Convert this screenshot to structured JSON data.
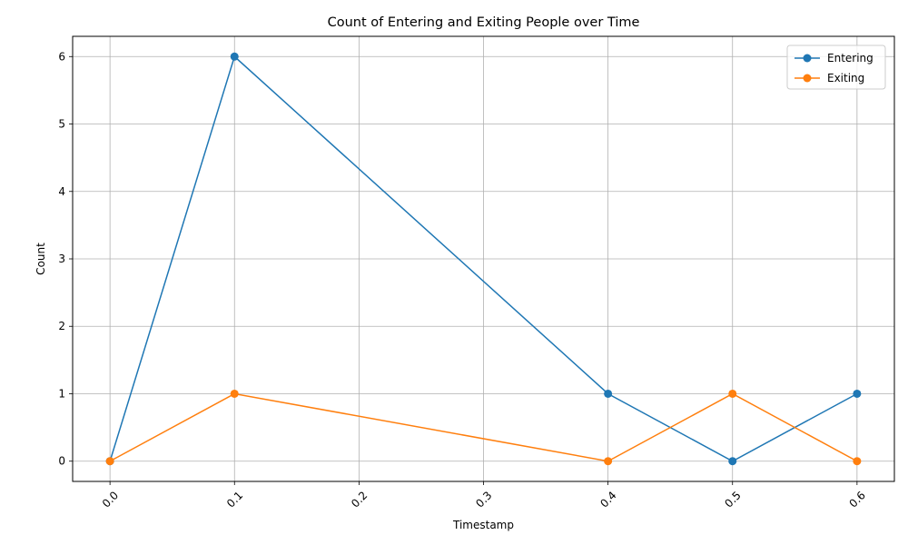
{
  "chart_data": {
    "type": "line",
    "title": "Count of Entering and Exiting People over Time",
    "xlabel": "Timestamp",
    "ylabel": "Count",
    "x": [
      0.0,
      0.1,
      0.4,
      0.5,
      0.6
    ],
    "series": [
      {
        "name": "Entering",
        "values": [
          0,
          6,
          1,
          0,
          1
        ],
        "color": "#1f77b4"
      },
      {
        "name": "Exiting",
        "values": [
          0,
          1,
          0,
          1,
          0
        ],
        "color": "#ff7f0e"
      }
    ],
    "xticks": [
      0.0,
      0.1,
      0.2,
      0.3,
      0.4,
      0.5,
      0.6
    ],
    "xtick_labels": [
      "0.0",
      "0.1",
      "0.2",
      "0.3",
      "0.4",
      "0.5",
      "0.6"
    ],
    "yticks": [
      0,
      1,
      2,
      3,
      4,
      5,
      6
    ],
    "ytick_labels": [
      "0",
      "1",
      "2",
      "3",
      "4",
      "5",
      "6"
    ],
    "xlim": [
      -0.03,
      0.63
    ],
    "ylim": [
      -0.3,
      6.3
    ],
    "grid": true,
    "legend_position": "top-right",
    "marker": "circle",
    "xtick_rotation": 45
  }
}
